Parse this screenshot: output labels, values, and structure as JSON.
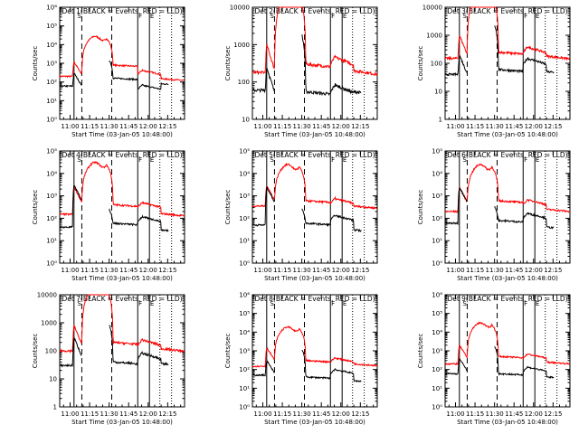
{
  "chart_data": {
    "type": "line",
    "layout": "3x3 panel grid",
    "xlabel": "Start Time (03-Jan-05 10:48:00)",
    "ylabel": "Counts/sec",
    "yscale": "log",
    "x_tick_labels": [
      "11:00",
      "11:15",
      "11:30",
      "11:45",
      "12:00",
      "12:15"
    ],
    "x_tick_minutes": [
      660,
      675,
      690,
      705,
      720,
      735
    ],
    "xlim_minutes": [
      652,
      748
    ],
    "colors": {
      "events": "#000000",
      "lld": "#ff0000"
    },
    "series": [
      {
        "name": "Events",
        "color": "#000000",
        "label_word": "BLACK"
      },
      {
        "name": "LLD",
        "color": "#ff0000",
        "label_word": "RED"
      }
    ],
    "markers": [
      {
        "minute": 663,
        "style": "solid"
      },
      {
        "minute": 669,
        "style": "dashed"
      },
      {
        "minute": 692,
        "style": "dashed"
      },
      {
        "minute": 712,
        "style": "solid"
      },
      {
        "minute": 721,
        "style": "solid"
      },
      {
        "minute": 729,
        "style": "dotted"
      },
      {
        "minute": 738,
        "style": "dotted"
      }
    ],
    "marker_letters": [
      {
        "text": "S",
        "minute": 667
      },
      {
        "text": "F",
        "minute": 714
      },
      {
        "text": "E",
        "minute": 723
      }
    ],
    "panels": [
      {
        "title": "Det 1(BLACK = Events, RED = LLD)",
        "ylim": [
          1,
          1000000
        ],
        "y_tick_labels": [
          "10⁰",
          "10¹",
          "10²",
          "10³",
          "10⁴",
          "10⁵",
          "10⁶"
        ],
        "events_level": [
          60,
          300,
          2500,
          160,
          40,
          80
        ],
        "lld_level": [
          200,
          1200,
          22000,
          800,
          250,
          150
        ]
      },
      {
        "title": "Det 2(BLACK = Events, RED = LLD)",
        "ylim": [
          10,
          10000
        ],
        "y_tick_labels": [
          "10",
          "100",
          "1000",
          "10000"
        ],
        "events_level": [
          60,
          250,
          3000,
          55,
          50,
          55
        ],
        "lld_level": [
          180,
          1000,
          20000,
          300,
          280,
          200
        ]
      },
      {
        "title": "Det 3(BLACK = Events, RED = LLD)",
        "ylim": [
          1,
          10000
        ],
        "y_tick_labels": [
          "1",
          "10",
          "100",
          "1000",
          "10000"
        ],
        "events_level": [
          40,
          200,
          4000,
          60,
          90,
          50
        ],
        "lld_level": [
          150,
          1000,
          25000,
          250,
          230,
          180
        ]
      },
      {
        "title": "Det 4(BLACK = Events, RED = LLD)",
        "ylim": [
          1,
          100000
        ],
        "y_tick_labels": [
          "10⁰",
          "10¹",
          "10²",
          "10³",
          "10⁴",
          "10⁵"
        ],
        "events_level": [
          40,
          3000,
          400,
          60,
          70,
          30
        ],
        "lld_level": [
          150,
          2500,
          25000,
          400,
          300,
          160
        ]
      },
      {
        "title": "Det 5(BLACK = Events, RED = LLD)",
        "ylim": [
          1,
          100000
        ],
        "y_tick_labels": [
          "10⁰",
          "10¹",
          "10²",
          "10³",
          "10⁴",
          "10⁵"
        ],
        "events_level": [
          50,
          2500,
          400,
          60,
          80,
          30
        ],
        "lld_level": [
          350,
          3000,
          20000,
          600,
          450,
          350
        ]
      },
      {
        "title": "Det 6(BLACK = Events, RED = LLD)",
        "ylim": [
          1,
          100000
        ],
        "y_tick_labels": [
          "10⁰",
          "10¹",
          "10²",
          "10³",
          "10⁴",
          "10⁵"
        ],
        "events_level": [
          60,
          2500,
          500,
          80,
          100,
          40
        ],
        "lld_level": [
          200,
          2500,
          20000,
          600,
          400,
          250
        ]
      },
      {
        "title": "Det 7(BLACK = Events, RED = LLD)",
        "ylim": [
          1,
          10000
        ],
        "y_tick_labels": [
          "1",
          "10",
          "100",
          "1000",
          "10000"
        ],
        "events_level": [
          30,
          300,
          1500,
          40,
          50,
          35
        ],
        "lld_level": [
          100,
          800,
          15000,
          200,
          150,
          120
        ]
      },
      {
        "title": "Det 8(BLACK = Events, RED = LLD)",
        "ylim": [
          1,
          1000000
        ],
        "y_tick_labels": [
          "10⁰",
          "10¹",
          "10²",
          "10³",
          "10⁴",
          "10⁵",
          "10⁶"
        ],
        "events_level": [
          50,
          300,
          2000,
          40,
          60,
          25
        ],
        "lld_level": [
          150,
          1500,
          15000,
          300,
          250,
          200
        ]
      },
      {
        "title": "Det 9(BLACK = Events, RED = LLD)",
        "ylim": [
          1,
          1000000
        ],
        "y_tick_labels": [
          "10⁰",
          "10¹",
          "10²",
          "10³",
          "10⁴",
          "10⁵",
          "10⁶"
        ],
        "events_level": [
          60,
          400,
          3000,
          60,
          80,
          40
        ],
        "lld_level": [
          200,
          2000,
          25000,
          500,
          400,
          250
        ]
      }
    ]
  }
}
